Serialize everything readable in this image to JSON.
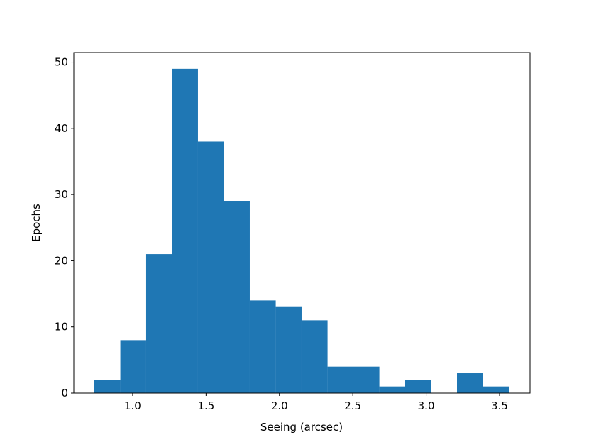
{
  "chart_data": {
    "type": "histogram",
    "xlabel": "Seeing (arcsec)",
    "ylabel": "Epochs",
    "bins": [
      0.739,
      0.916,
      1.092,
      1.269,
      1.445,
      1.622,
      1.798,
      1.975,
      2.151,
      2.328,
      2.504,
      2.681,
      2.857,
      3.034,
      3.21,
      3.387,
      3.563
    ],
    "values": [
      2,
      8,
      21,
      49,
      38,
      29,
      14,
      13,
      11,
      4,
      4,
      1,
      2,
      0,
      3,
      1
    ],
    "color": "#1f77b4",
    "xlim": [
      0.599,
      3.708
    ],
    "ylim": [
      0,
      51.45
    ],
    "xticks": [
      {
        "value": 1.0,
        "label": "1.0"
      },
      {
        "value": 1.5,
        "label": "1.5"
      },
      {
        "value": 2.0,
        "label": "2.0"
      },
      {
        "value": 2.5,
        "label": "2.5"
      },
      {
        "value": 3.0,
        "label": "3.0"
      },
      {
        "value": 3.5,
        "label": "3.5"
      }
    ],
    "yticks": [
      0,
      10,
      20,
      30,
      40,
      50
    ]
  }
}
